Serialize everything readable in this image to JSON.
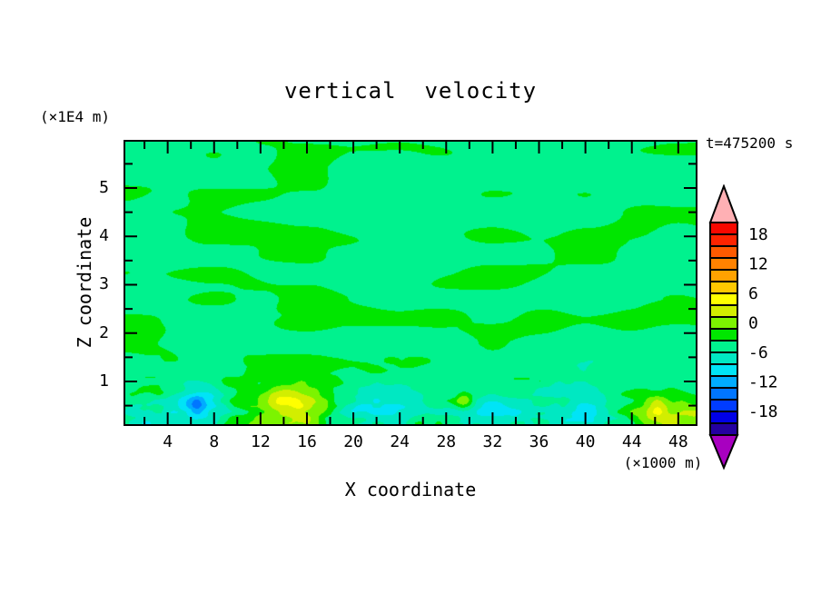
{
  "title": "vertical  velocity",
  "timestamp": "t=475200 s",
  "y_axis": {
    "label": "Z coordinate",
    "unit": "(×1E4 m)",
    "tick_labels": [
      "5",
      "4",
      "3",
      "2",
      "1"
    ],
    "tick_values": [
      5,
      4,
      3,
      2,
      1
    ],
    "minor_tick_values": [
      5.5,
      4.5,
      3.5,
      2.5,
      1.5,
      0.5
    ],
    "range": [
      0.117,
      5.958
    ]
  },
  "x_axis": {
    "label": "X coordinate",
    "unit": "(×1000 m)",
    "tick_labels": [
      "4",
      "8",
      "12",
      "16",
      "20",
      "24",
      "28",
      "32",
      "36",
      "40",
      "44",
      "48"
    ],
    "tick_values": [
      4,
      8,
      12,
      16,
      20,
      24,
      28,
      32,
      36,
      40,
      44,
      48
    ],
    "minor_tick_values": [
      2,
      6,
      10,
      14,
      18,
      22,
      26,
      30,
      34,
      38,
      42,
      46
    ],
    "range": [
      0.35,
      49.5
    ]
  },
  "colorbar": {
    "labels": [
      "18",
      "12",
      "6",
      "0",
      "-6",
      "-12",
      "-18"
    ],
    "label_values": [
      18,
      12,
      6,
      0,
      -6,
      -12,
      -18
    ],
    "segment_colors_top_to_bottom": [
      "#f80800",
      "#ff2400",
      "#ff5a00",
      "#ff8200",
      "#ffa200",
      "#ffc800",
      "#ffff00",
      "#d2ee00",
      "#7cf400",
      "#00e600",
      "#00f28e",
      "#00e8c2",
      "#00e4f6",
      "#00acff",
      "#0076ff",
      "#003cff",
      "#0000e6",
      "#2400a0"
    ],
    "top_arrow_color": "#ffb0b4",
    "bottom_arrow_color": "#a800c0",
    "outline_color": "#000000"
  },
  "chart_data": {
    "type": "heatmap",
    "subtype": "filled-contour",
    "title": "vertical velocity",
    "time_annotation": "t=475200 s",
    "xlabel": "X coordinate (×1000 m)",
    "ylabel": "Z coordinate (×1E4 m)",
    "x_range": [
      0.35,
      49.5
    ],
    "z_range": [
      0.117,
      5.958
    ],
    "contour_interval": 2.4,
    "colorbar_labels": [
      18,
      12,
      6,
      0,
      -6,
      -12,
      -18
    ],
    "background_field": "mostly between -2.4 and +2.4 (spring-green band below 0, green band above 0); elongated smooth bands aloft, fine speckled structure below z≈1.5",
    "features": [
      {
        "x": 15.0,
        "z": 0.5,
        "peak": 8.6,
        "sx": 2.6,
        "sz": 0.34,
        "note": "strong updraft, yellow core"
      },
      {
        "x": 47.3,
        "z": 0.3,
        "peak": 6.6,
        "sx": 2.3,
        "sz": 0.34,
        "note": "updraft near right edge, yellow-green core"
      },
      {
        "x": 6.6,
        "z": 0.55,
        "peak": -6.2,
        "sx": 1.5,
        "sz": 0.33,
        "note": "downdraft, cyan patch"
      },
      {
        "x": 6.5,
        "z": 0.52,
        "peak": -3.4,
        "sx": 0.45,
        "sz": 0.14,
        "note": "blue dot core of downdraft"
      },
      {
        "x": 21.8,
        "z": 0.5,
        "peak": -4.6,
        "sx": 3.0,
        "sz": 0.38,
        "note": "turquoise/cyan band"
      },
      {
        "x": 31.8,
        "z": 0.32,
        "peak": -3.8,
        "sx": 2.2,
        "sz": 0.3,
        "note": "turquoise band"
      },
      {
        "x": 39.8,
        "z": 0.42,
        "peak": -4.4,
        "sx": 2.6,
        "sz": 0.42,
        "note": "turquoise/cyan band"
      },
      {
        "x": 29.5,
        "z": 0.6,
        "peak": 4.6,
        "sx": 0.5,
        "sz": 0.12,
        "note": "small chartreuse dot"
      },
      {
        "x": 2.5,
        "z": 0.15,
        "peak": -3.5,
        "sx": 1.8,
        "sz": 0.25,
        "note": "cyan sliver bottom-left corner"
      }
    ]
  }
}
